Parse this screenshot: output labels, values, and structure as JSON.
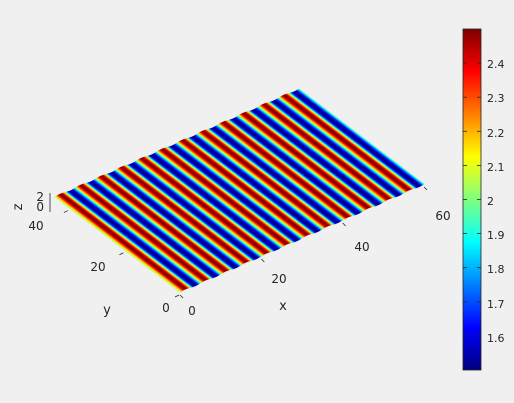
{
  "chart_data": {
    "type": "surface",
    "surface_function": "z = 2 + 0.5*sin(2*pi*x/5)",
    "x_range": [
      0,
      60
    ],
    "y_range": [
      0,
      45
    ],
    "z_range": [
      1.5,
      2.5
    ],
    "z_visible_range": [
      0,
      2
    ],
    "stripe_period_x": 5,
    "xlabel": "x",
    "ylabel": "y",
    "zlabel": "z",
    "x_ticks": [
      "0",
      "20",
      "40",
      "60"
    ],
    "y_ticks": [
      "0",
      "20",
      "40"
    ],
    "z_ticks": [
      "0",
      "2"
    ],
    "colormap": "jet",
    "colorbar": {
      "min": 1.5,
      "max": 2.5,
      "ticks": [
        "1.6",
        "1.7",
        "1.8",
        "1.9",
        "2",
        "2.1",
        "2.2",
        "2.3",
        "2.4"
      ]
    },
    "grid": true
  }
}
